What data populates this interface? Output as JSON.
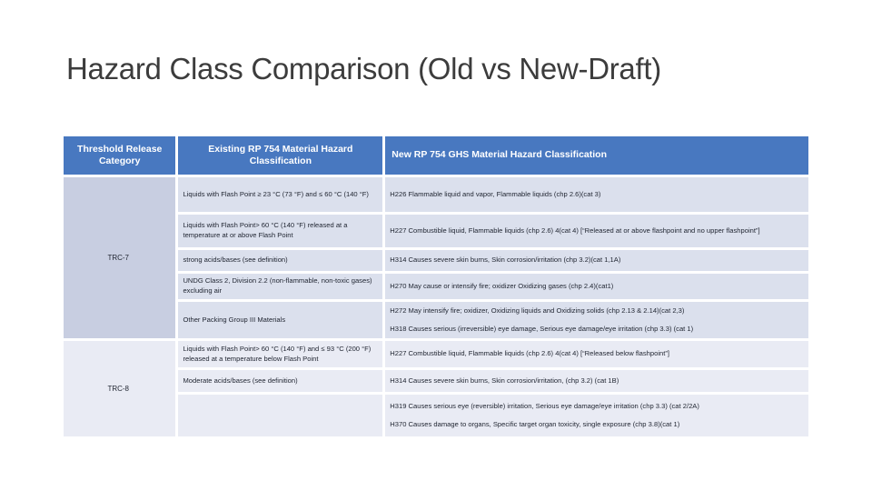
{
  "slide": {
    "title": "Hazard Class Comparison (Old vs New-Draft)"
  },
  "colors": {
    "header_bg": "#4878c0",
    "header_text": "#ffffff",
    "trc7_category_bg": "#c8cee1",
    "trc7_row_bg": "#dbe0ed",
    "trc8_bg": "#e9ebf4",
    "cell_text": "#1f2430"
  },
  "table": {
    "headers": [
      "Threshold Release Category",
      "Existing RP 754 Material Hazard Classification",
      "New RP 754 GHS Material Hazard Classification"
    ],
    "sections": [
      {
        "category": "TRC-7",
        "rows": [
          {
            "existing": "Liquids with Flash Point ≥ 23 °C (73 °F) and ≤ 60 °C (140 °F)",
            "new": [
              "H226 Flammable liquid and vapor, Flammable liquids (chp 2.6)(cat 3)"
            ]
          },
          {
            "existing": "Liquids with Flash Point> 60 °C (140 °F) released at a temperature at or above Flash Point",
            "new": [
              "H227 Combustible liquid, Flammable liquids (chp 2.6) 4(cat 4) [“Released at or above flashpoint and no upper flashpoint”]"
            ]
          },
          {
            "existing": "strong acids/bases (see definition)",
            "new": [
              "H314 Causes severe skin burns, Skin corrosion/irritation (chp 3.2)(cat 1,1A)"
            ]
          },
          {
            "existing": "UNDG Class 2, Division 2.2 (non-flammable, non-toxic gases) excluding air",
            "new": [
              "H270 May cause or intensify fire; oxidizer Oxidizing gases (chp 2.4)(cat1)"
            ]
          },
          {
            "existing": "Other Packing Group III Materials",
            "new": [
              "H272 May intensify fire; oxidizer, Oxidizing liquids and Oxidizing solids (chp 2.13 & 2.14)(cat 2,3)",
              "H318 Causes serious (irreversible) eye damage, Serious eye damage/eye irritation (chp 3.3) (cat 1)"
            ]
          }
        ]
      },
      {
        "category": "TRC-8",
        "rows": [
          {
            "existing": "Liquids with Flash Point> 60 °C (140 °F) and ≤ 93 °C (200 °F) released at a temperature below Flash Point",
            "new": [
              "H227 Combustible liquid, Flammable liquids (chp 2.6) 4(cat 4) [“Released below flashpoint”]"
            ]
          },
          {
            "existing": "Moderate acids/bases (see definition)",
            "new": [
              "H314 Causes severe skin burns, Skin corrosion/irritation, (chp 3.2) (cat 1B)"
            ]
          },
          {
            "existing": "",
            "new": [
              "H319 Causes serious eye (reversible) irritation, Serious eye damage/eye irritation (chp 3.3) (cat 2/2A)",
              "H370 Causes damage to organs, Specific target organ toxicity, single exposure (chp 3.8)(cat 1)"
            ]
          }
        ]
      }
    ]
  }
}
